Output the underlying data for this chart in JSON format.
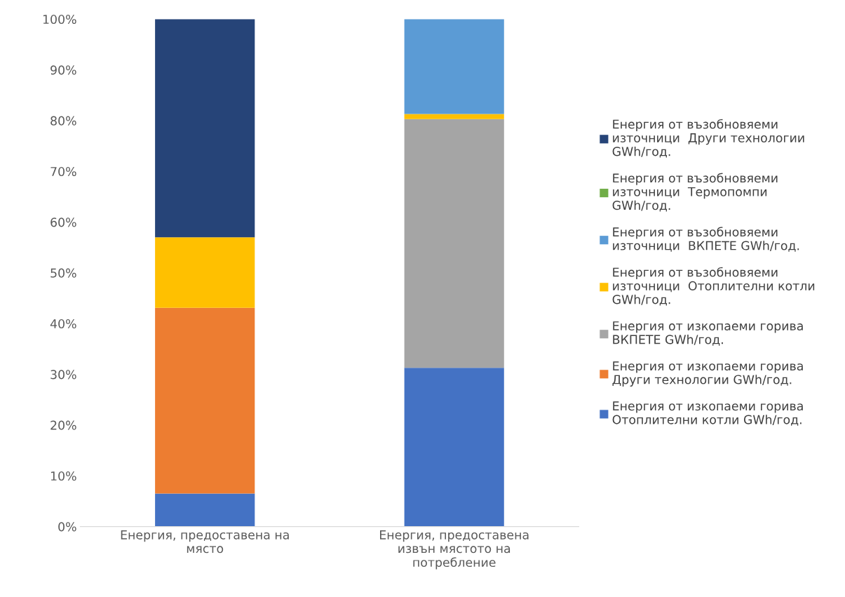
{
  "chart_data": {
    "type": "bar",
    "stacked": true,
    "categories": [
      "Енергия, предоставена на\nмясто",
      "Енергия, предоставена\nизвън мястото на\nпотребление"
    ],
    "ylim": [
      0,
      100
    ],
    "yticks": [
      {
        "value": 0,
        "label": "0%"
      },
      {
        "value": 10,
        "label": "10%"
      },
      {
        "value": 20,
        "label": "20%"
      },
      {
        "value": 30,
        "label": "30%"
      },
      {
        "value": 40,
        "label": "40%"
      },
      {
        "value": 50,
        "label": "50%"
      },
      {
        "value": 60,
        "label": "60%"
      },
      {
        "value": 70,
        "label": "70%"
      },
      {
        "value": 80,
        "label": "80%"
      },
      {
        "value": 90,
        "label": "90%"
      },
      {
        "value": 100,
        "label": "100%"
      }
    ],
    "grid": false,
    "legend": "right",
    "series": [
      {
        "name": "Енергия от изкопаеми горива\nОтоплителни котли GWh/год.",
        "color": "#4472c4",
        "values": [
          6.5,
          31.3
        ]
      },
      {
        "name": "Енергия от изкопаеми горива\nДруги технологии GWh/год.",
        "color": "#ed7d31",
        "values": [
          36.6,
          0
        ]
      },
      {
        "name": "Енергия от изкопаеми горива\nВКПЕТЕ GWh/год.",
        "color": "#a5a5a5",
        "values": [
          0,
          49.0
        ]
      },
      {
        "name": "Енергия от възобновяеми\nизточници  Отоплителни котли\nGWh/год.",
        "color": "#ffc000",
        "values": [
          13.9,
          1.0
        ]
      },
      {
        "name": "Енергия от възобновяеми\nизточници  ВКПЕТЕ GWh/год.",
        "color": "#5b9bd5",
        "values": [
          0,
          18.7
        ]
      },
      {
        "name": "Енергия от възобновяеми\nизточници  Термопомпи\nGWh/год.",
        "color": "#70ad47",
        "values": [
          0,
          0
        ]
      },
      {
        "name": "Енергия от възобновяеми\nизточници  Други технологии\nGWh/год.",
        "color": "#264478",
        "values": [
          43.0,
          0
        ]
      }
    ]
  }
}
